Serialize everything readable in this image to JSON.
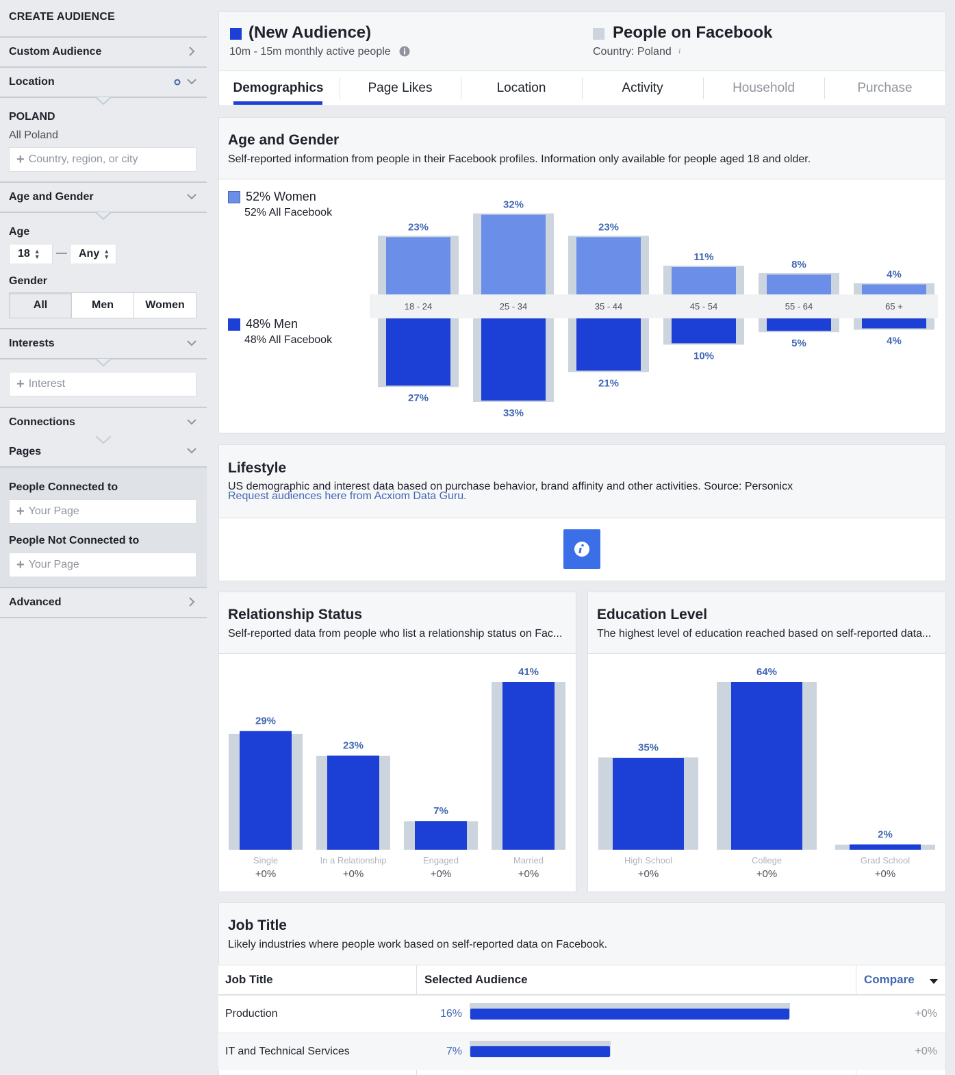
{
  "sidebar": {
    "title": "CREATE AUDIENCE",
    "custom_audience": "Custom Audience",
    "location": "Location",
    "country": "POLAND",
    "country_sub": "All Poland",
    "location_placeholder": "Country, region, or city",
    "age_gender": "Age and Gender",
    "age_label": "Age",
    "age_min": "18",
    "age_max": "Any",
    "age_dash": "—",
    "gender_label": "Gender",
    "gender_options": [
      "All",
      "Men",
      "Women"
    ],
    "interests": "Interests",
    "interest_placeholder": "Interest",
    "connections": "Connections",
    "pages": "Pages",
    "people_connected": "People Connected to",
    "people_not_connected": "People Not Connected to",
    "your_page_placeholder": "Your Page",
    "advanced": "Advanced"
  },
  "header": {
    "audience_name": "(New Audience)",
    "audience_size": "10m - 15m monthly active people",
    "compare_name": "People on Facebook",
    "compare_country": "Country: Poland",
    "audience_color": "#1c3fd6",
    "compare_color": "#ccd4dd"
  },
  "tabs": [
    "Demographics",
    "Page Likes",
    "Location",
    "Activity",
    "Household",
    "Purchase"
  ],
  "age_gender": {
    "title": "Age and Gender",
    "subtitle": "Self-reported information from people in their Facebook profiles. Information only available for people aged 18 and older.",
    "women_label": "52% Women",
    "women_fb": "52% All Facebook",
    "men_label": "48% Men",
    "men_fb": "48% All Facebook"
  },
  "lifestyle": {
    "title": "Lifestyle",
    "subtitle": "US demographic and interest data based on purchase behavior, brand affinity and other activities. Source: Personicx",
    "link": "Request audiences here from Acxiom Data Guru."
  },
  "relationship": {
    "title": "Relationship Status",
    "subtitle": "Self-reported data from people who list a relationship status on Fac..."
  },
  "education": {
    "title": "Education Level",
    "subtitle": "The highest level of education reached based on self-reported data..."
  },
  "job_title": {
    "title": "Job Title",
    "subtitle": "Likely industries where people work based on self-reported data on Facebook.",
    "col_title": "Job Title",
    "col_audience": "Selected Audience",
    "col_compare": "Compare",
    "rows": [
      {
        "name": "Production",
        "pct": "16%",
        "value": 16,
        "delta": "+0%"
      },
      {
        "name": "IT and Technical Services",
        "pct": "7%",
        "value": 7,
        "delta": "+0%"
      }
    ]
  },
  "chart_data": [
    {
      "type": "bar",
      "title": "Age and Gender",
      "categories": [
        "18 - 24",
        "25 - 34",
        "35 - 44",
        "45 - 54",
        "55 - 64",
        "65 +"
      ],
      "series": [
        {
          "name": "52% Women",
          "values": [
            23,
            32,
            23,
            11,
            8,
            4
          ],
          "labels": [
            "23%",
            "32%",
            "23%",
            "11%",
            "8%",
            "4%"
          ],
          "color": "#6b8fe8"
        },
        {
          "name": "48% Men",
          "values": [
            27,
            33,
            21,
            10,
            5,
            4
          ],
          "labels": [
            "27%",
            "33%",
            "21%",
            "10%",
            "5%",
            "4%"
          ],
          "color": "#1c3fd6"
        }
      ]
    },
    {
      "type": "bar",
      "title": "Relationship Status",
      "categories": [
        "Single",
        "In a Relationship",
        "Engaged",
        "Married"
      ],
      "values": [
        29,
        23,
        7,
        41
      ],
      "labels": [
        "29%",
        "23%",
        "7%",
        "41%"
      ],
      "deltas": [
        "+0%",
        "+0%",
        "+0%",
        "+0%"
      ]
    },
    {
      "type": "bar",
      "title": "Education Level",
      "categories": [
        "High School",
        "College",
        "Grad School"
      ],
      "values": [
        35,
        64,
        2
      ],
      "labels": [
        "35%",
        "64%",
        "2%"
      ],
      "deltas": [
        "+0%",
        "+0%",
        "+0%"
      ]
    }
  ]
}
